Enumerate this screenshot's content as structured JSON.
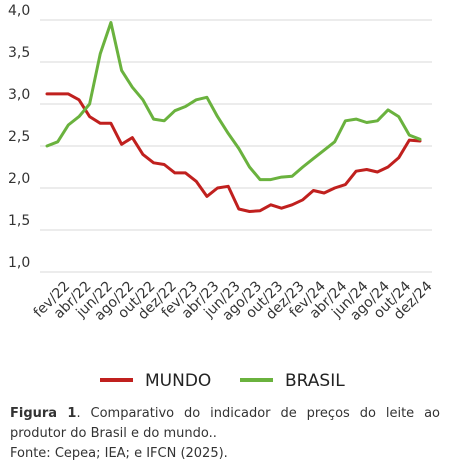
{
  "chart_data": {
    "type": "line",
    "categories": [
      null,
      "fev/22",
      null,
      "abr/22",
      null,
      "jun/22",
      null,
      "ago/22",
      null,
      "out/22",
      null,
      "dez/22",
      null,
      "fev/23",
      null,
      "abr/23",
      null,
      "jun/23",
      null,
      "ago/23",
      null,
      "out/23",
      null,
      "dez/23",
      null,
      "fev/24",
      null,
      "abr/24",
      null,
      "jun/24",
      null,
      "ago/24",
      null,
      "out/24",
      null,
      "dez/24"
    ],
    "series": [
      {
        "name": "MUNDO",
        "color": "#c0201e",
        "values": [
          3.12,
          3.12,
          3.12,
          3.05,
          2.85,
          2.77,
          2.77,
          2.52,
          2.6,
          2.4,
          2.3,
          2.28,
          2.18,
          2.18,
          2.08,
          1.9,
          2.0,
          2.02,
          1.75,
          1.72,
          1.73,
          1.8,
          1.76,
          1.8,
          1.86,
          1.97,
          1.94,
          2.0,
          2.04,
          2.2,
          2.22,
          2.19,
          2.25,
          2.36,
          2.57,
          2.56
        ]
      },
      {
        "name": "BRASIL",
        "color": "#6ab23e",
        "values": [
          2.5,
          2.55,
          2.75,
          2.85,
          3.0,
          3.6,
          3.97,
          3.4,
          3.2,
          3.05,
          2.82,
          2.8,
          2.92,
          2.97,
          3.05,
          3.08,
          2.85,
          2.65,
          2.47,
          2.25,
          2.1,
          2.1,
          2.13,
          2.14,
          2.25,
          2.35,
          2.45,
          2.55,
          2.8,
          2.82,
          2.78,
          2.8,
          2.93,
          2.85,
          2.63,
          2.58
        ]
      }
    ],
    "ylim": [
      1.0,
      4.0
    ],
    "yticks": [
      {
        "value": 1.0,
        "label": "1,0"
      },
      {
        "value": 1.5,
        "label": "1,5"
      },
      {
        "value": 2.0,
        "label": "2,0"
      },
      {
        "value": 2.5,
        "label": "2,5"
      },
      {
        "value": 3.0,
        "label": "3,0"
      },
      {
        "value": 3.5,
        "label": "3,5"
      },
      {
        "value": 4.0,
        "label": "4,0"
      }
    ],
    "grid": true
  },
  "caption": {
    "label": "Figura 1",
    "text": ". Comparativo do indicador de preços do leite ao produtor do Brasil e do mundo..",
    "source": "Fonte: Cepea; IEA; e IFCN (2025)."
  }
}
